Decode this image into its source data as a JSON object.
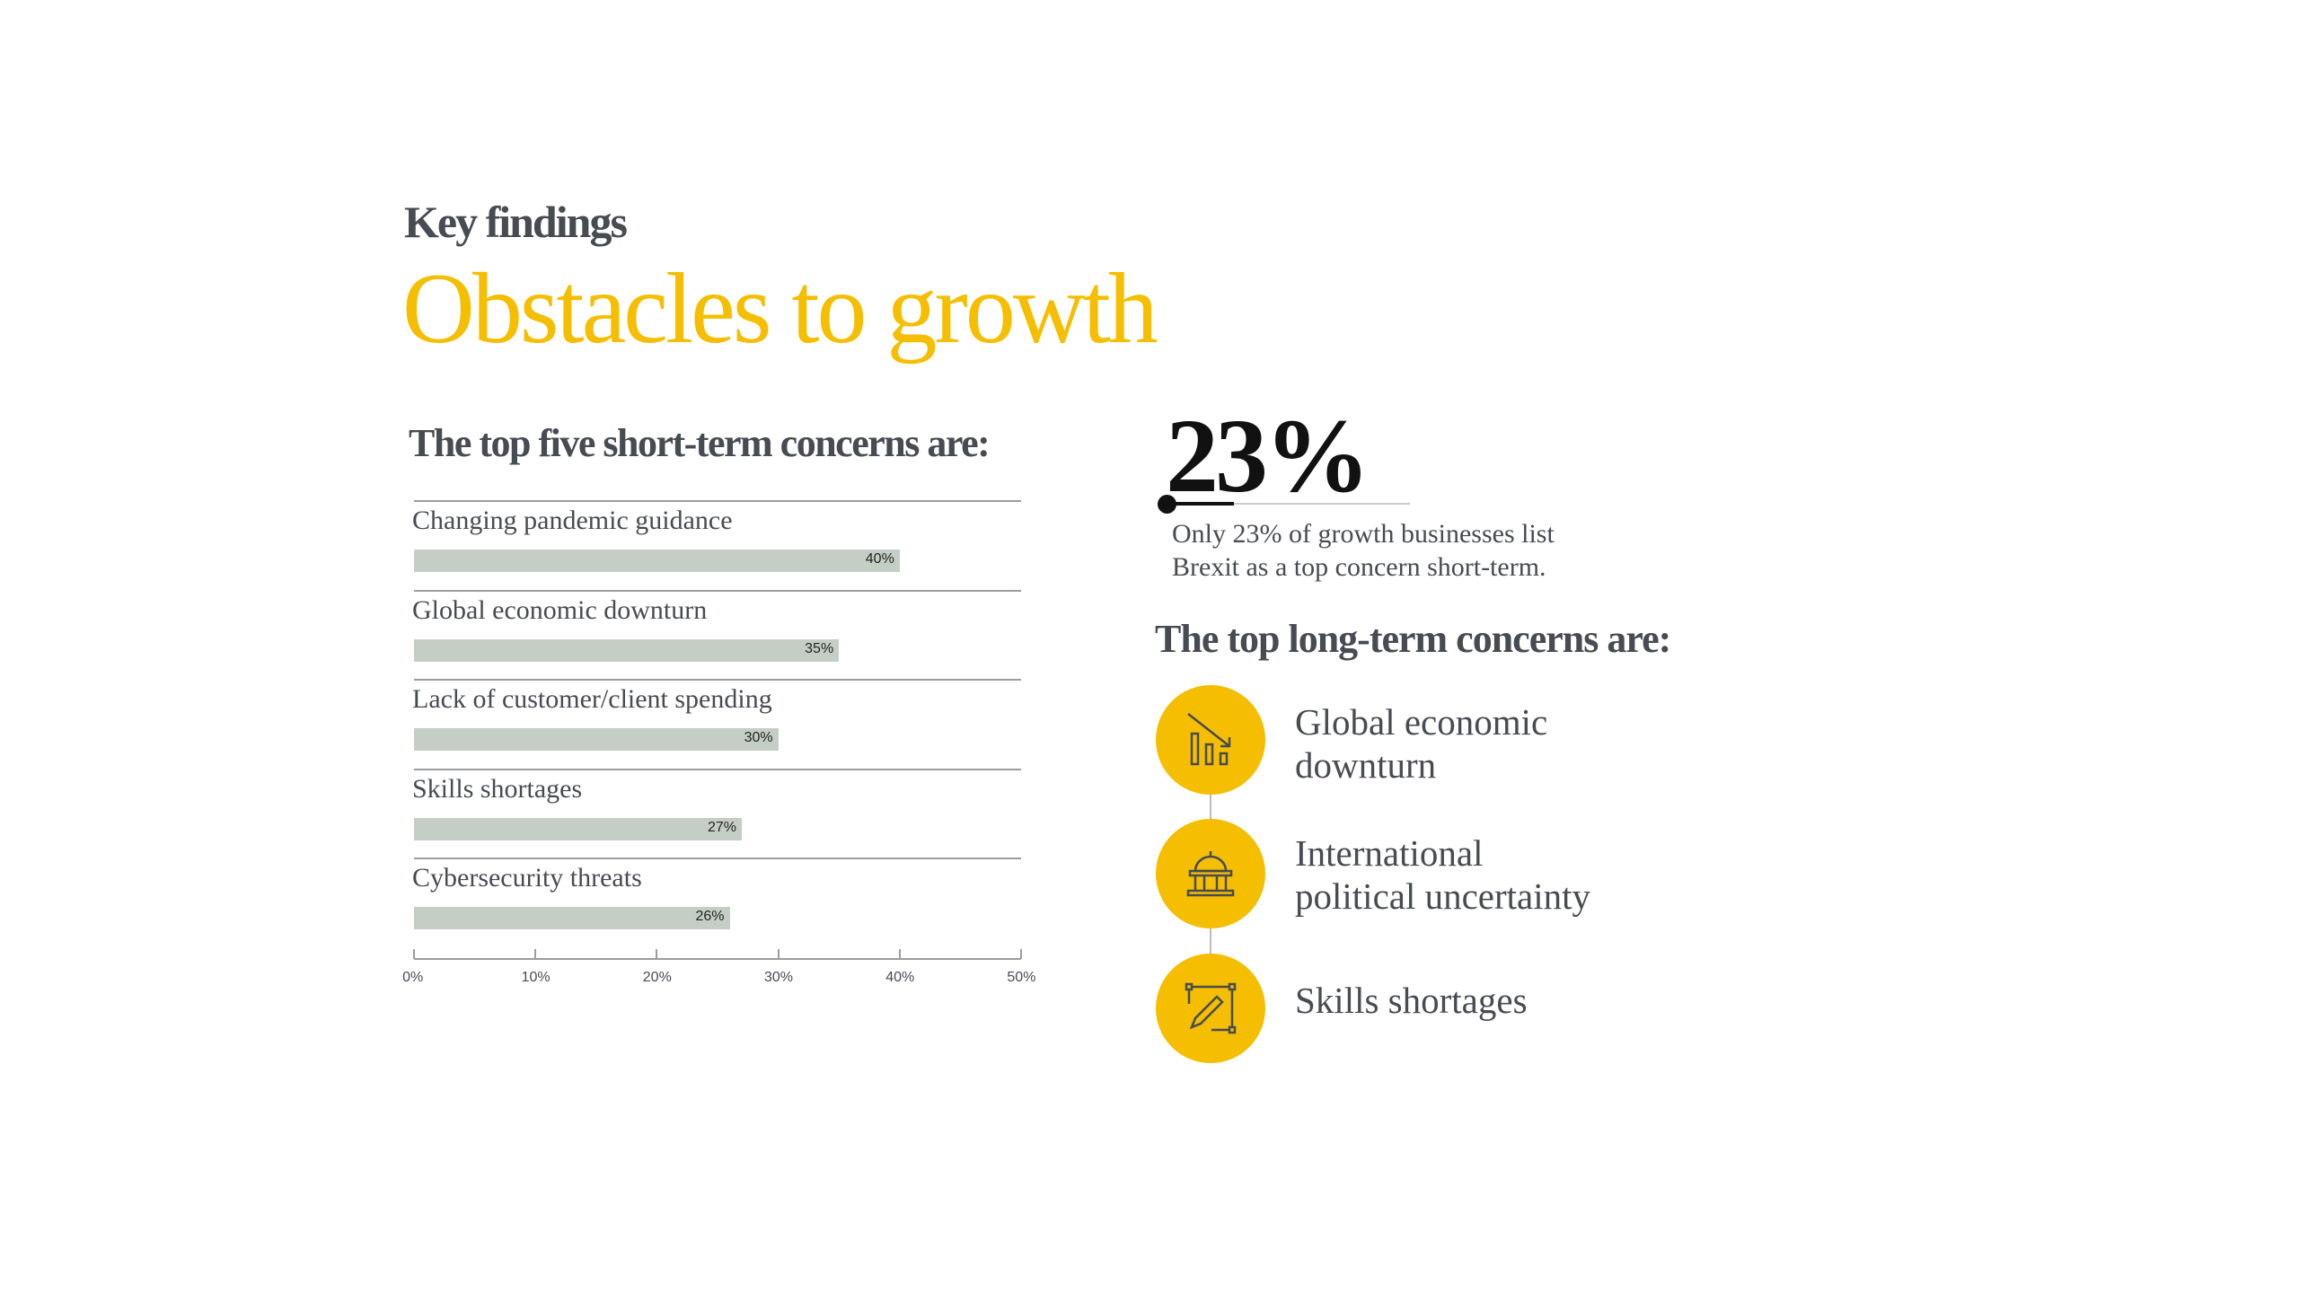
{
  "header": {
    "kicker": "Key findings",
    "title": "Obstacles to growth"
  },
  "short_term": {
    "heading": "The top five short-term concerns are:"
  },
  "chart_data": {
    "type": "bar",
    "orientation": "horizontal",
    "categories": [
      "Changing pandemic guidance",
      "Global economic downturn",
      "Lack of customer/client spending",
      "Skills shortages",
      "Cybersecurity threats"
    ],
    "values": [
      40,
      35,
      30,
      27,
      26
    ],
    "data_labels": [
      "40%",
      "35%",
      "30%",
      "27%",
      "26%"
    ],
    "xlim": [
      0,
      50
    ],
    "x_ticks": [
      "0%",
      "10%",
      "20%",
      "30%",
      "40%",
      "50%"
    ],
    "bar_color": "#c5cec5",
    "grid": false
  },
  "stat": {
    "value": "23%",
    "description": "Only 23% of growth businesses list Brexit as a top concern short-term."
  },
  "long_term": {
    "heading": "The top long-term concerns are:",
    "items": [
      {
        "label": "Global economic\ndownturn",
        "icon": "chart-down-icon"
      },
      {
        "label": "International\npolitical uncertainty",
        "icon": "government-building-icon"
      },
      {
        "label": "Skills shortages",
        "icon": "design-pencil-icon"
      }
    ]
  },
  "colors": {
    "accent": "#f5be00",
    "text": "#474b52",
    "bar": "#c5cec5"
  }
}
